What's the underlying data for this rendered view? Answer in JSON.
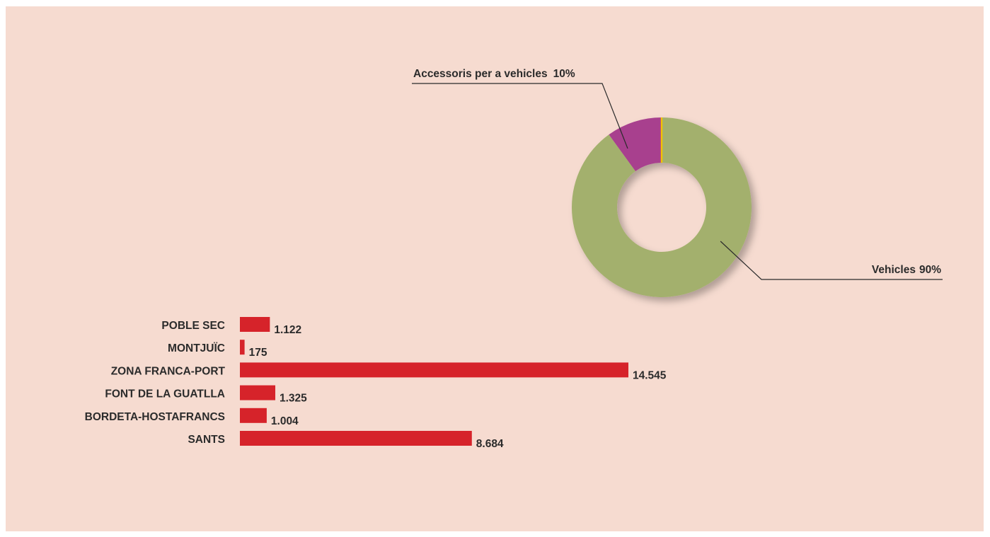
{
  "colors": {
    "panel_background": "#f6dbd0",
    "vehicles": "#a3b06d",
    "accessoris": "#a8418e",
    "separator": "#f2c000",
    "bars": "#d6232a",
    "leader_lines": "#2b2b2b"
  },
  "chart_data": [
    {
      "type": "pie",
      "style": "donut",
      "title": "",
      "slices": [
        {
          "label": "Accessoris per a vehicles",
          "value": 10,
          "display": "10%",
          "color": "#a8418e"
        },
        {
          "label": "Vehicles",
          "value": 90,
          "display": "90%",
          "color": "#a3b06d"
        }
      ]
    },
    {
      "type": "bar",
      "orientation": "horizontal",
      "title": "",
      "xlabel": "",
      "ylabel": "",
      "categories": [
        "POBLE SEC",
        "MONTJUÏC",
        "ZONA FRANCA-PORT",
        "FONT DE LA GUATLLA",
        "BORDETA-HOSTAFRANCS",
        "SANTS"
      ],
      "values": [
        1122,
        175,
        14545,
        1325,
        1004,
        8684
      ],
      "value_labels": [
        "1.122",
        "175",
        "14.545",
        "1.325",
        "1.004",
        "8.684"
      ],
      "color": "#d6232a",
      "grid": false
    }
  ]
}
